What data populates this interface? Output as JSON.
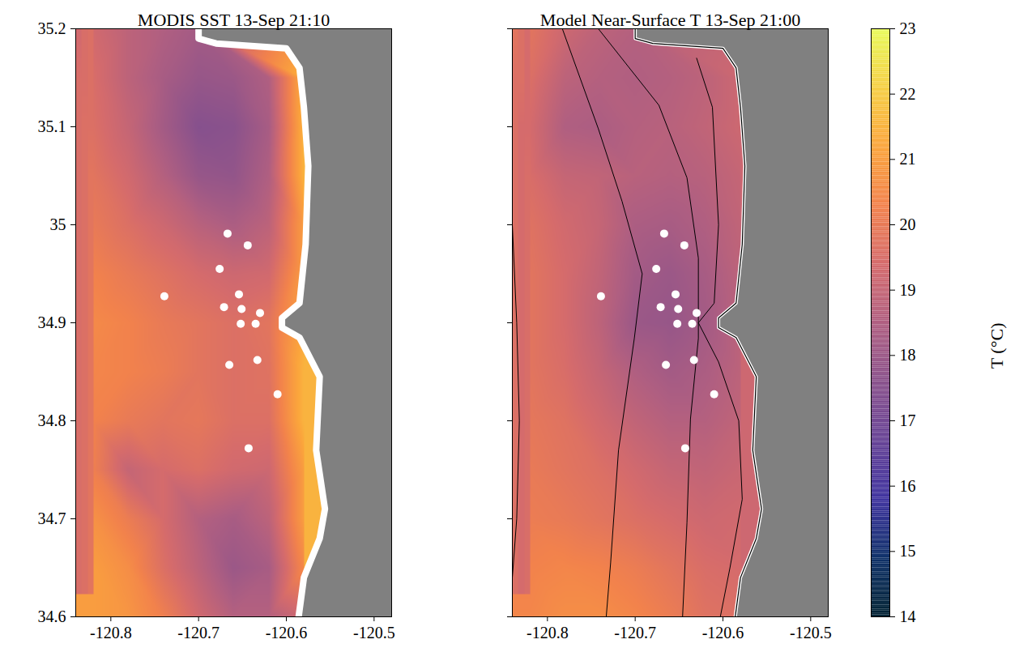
{
  "chart_data": [
    {
      "type": "heatmap",
      "title": "MODIS SST 13-Sep 21:10",
      "xlim": [
        -120.84,
        -120.48
      ],
      "xticks": [
        -120.8,
        -120.7,
        -120.6,
        -120.5
      ],
      "ylim": [
        34.6,
        35.2
      ],
      "yticks": [
        34.6,
        34.7,
        34.8,
        34.9,
        35,
        35.1,
        35.2
      ],
      "lon": [
        -120.82,
        -120.78,
        -120.74,
        -120.7,
        -120.66,
        -120.62,
        -120.58
      ],
      "lat": [
        35.2,
        35.15,
        35.1,
        35.05,
        35.0,
        34.95,
        34.9,
        34.85,
        34.8,
        34.75,
        34.7,
        34.65,
        34.6
      ],
      "cells": [
        [
          19.3,
          18.8,
          18.5,
          18.2,
          null,
          null,
          null
        ],
        [
          19.5,
          18.8,
          18.3,
          17.9,
          18.0,
          18.5,
          21.5
        ],
        [
          19.6,
          19.0,
          18.2,
          17.5,
          17.6,
          18.3,
          21.5
        ],
        [
          19.8,
          19.3,
          18.6,
          17.9,
          17.8,
          18.5,
          21.5
        ],
        [
          20.0,
          19.6,
          19.2,
          18.7,
          18.4,
          18.8,
          21.0
        ],
        [
          20.3,
          20.0,
          19.7,
          19.4,
          19.2,
          19.3,
          21.0
        ],
        [
          20.5,
          20.3,
          20.0,
          19.8,
          19.6,
          19.8,
          null
        ],
        [
          20.4,
          20.3,
          20.1,
          19.8,
          19.6,
          19.7,
          21.5
        ],
        [
          20.3,
          20.0,
          19.8,
          19.9,
          19.6,
          19.6,
          21.5
        ],
        [
          20.2,
          19.0,
          19.4,
          19.6,
          19.3,
          19.2,
          21.0
        ],
        [
          20.7,
          20.1,
          19.4,
          18.6,
          18.3,
          18.8,
          21.0
        ],
        [
          21.0,
          20.6,
          19.6,
          18.8,
          18.0,
          18.3,
          20.5
        ],
        [
          21.0,
          20.8,
          20.2,
          19.3,
          18.6,
          18.6,
          null
        ]
      ],
      "coastline": [
        [
          -120.7,
          35.2
        ],
        [
          -120.7,
          35.19
        ],
        [
          -120.68,
          35.185
        ],
        [
          -120.6,
          35.18
        ],
        [
          -120.585,
          35.16
        ],
        [
          -120.58,
          35.12
        ],
        [
          -120.575,
          35.06
        ],
        [
          -120.578,
          34.98
        ],
        [
          -120.585,
          34.92
        ],
        [
          -120.605,
          34.905
        ],
        [
          -120.605,
          34.895
        ],
        [
          -120.585,
          34.885
        ],
        [
          -120.562,
          34.845
        ],
        [
          -120.566,
          34.77
        ],
        [
          -120.556,
          34.71
        ],
        [
          -120.562,
          34.68
        ],
        [
          -120.58,
          34.64
        ],
        [
          -120.586,
          34.6
        ]
      ],
      "stations": {
        "lon": [
          -120.667,
          -120.644,
          -120.676,
          -120.739,
          -120.654,
          -120.671,
          -120.651,
          -120.63,
          -120.652,
          -120.635,
          -120.665,
          -120.633,
          -120.61,
          -120.643
        ],
        "lat": [
          34.991,
          34.979,
          34.955,
          34.927,
          34.929,
          34.916,
          34.914,
          34.91,
          34.899,
          34.899,
          34.857,
          34.862,
          34.827,
          34.772
        ]
      }
    },
    {
      "type": "heatmap",
      "title": "Model Near-Surface T 13-Sep 21:00",
      "xlim": [
        -120.84,
        -120.48
      ],
      "xticks": [
        -120.8,
        -120.7,
        -120.6,
        -120.5
      ],
      "ylim": [
        34.6,
        35.2
      ],
      "yticks": [
        34.6,
        34.7,
        34.8,
        34.9,
        35,
        35.1,
        35.2
      ],
      "tick_labels": "x",
      "lon": [
        -120.82,
        -120.78,
        -120.74,
        -120.7,
        -120.66,
        -120.62,
        -120.58
      ],
      "lat": [
        35.2,
        35.15,
        35.1,
        35.05,
        35.0,
        34.95,
        34.9,
        34.85,
        34.8,
        34.75,
        34.7,
        34.65,
        34.6
      ],
      "cells": [
        [
          19.8,
          19.2,
          18.8,
          18.6,
          null,
          null,
          null
        ],
        [
          19.6,
          18.8,
          18.6,
          18.5,
          18.6,
          18.8,
          19.2
        ],
        [
          19.4,
          18.5,
          18.4,
          18.6,
          18.7,
          18.9,
          19.2
        ],
        [
          19.5,
          19.0,
          18.9,
          18.7,
          18.6,
          18.7,
          19.0
        ],
        [
          19.7,
          19.3,
          19.0,
          18.4,
          18.3,
          18.5,
          18.9
        ],
        [
          19.8,
          19.4,
          18.9,
          18.2,
          18.0,
          18.3,
          18.8
        ],
        [
          19.8,
          19.4,
          18.8,
          18.0,
          17.9,
          18.2,
          null
        ],
        [
          19.8,
          19.5,
          19.0,
          18.5,
          18.2,
          18.4,
          18.8
        ],
        [
          19.9,
          19.7,
          19.3,
          18.9,
          18.6,
          18.6,
          18.9
        ],
        [
          20.0,
          19.8,
          19.6,
          19.3,
          19.0,
          18.9,
          19.1
        ],
        [
          20.1,
          20.0,
          19.8,
          19.6,
          19.4,
          19.2,
          19.3
        ],
        [
          20.3,
          20.4,
          20.3,
          20.1,
          19.8,
          19.5,
          19.4
        ],
        [
          20.4,
          20.6,
          20.6,
          20.4,
          20.1,
          19.7,
          null
        ]
      ],
      "coastline": [
        [
          -120.7,
          35.2
        ],
        [
          -120.7,
          35.19
        ],
        [
          -120.68,
          35.185
        ],
        [
          -120.6,
          35.18
        ],
        [
          -120.585,
          35.16
        ],
        [
          -120.58,
          35.12
        ],
        [
          -120.575,
          35.06
        ],
        [
          -120.578,
          34.98
        ],
        [
          -120.585,
          34.92
        ],
        [
          -120.605,
          34.905
        ],
        [
          -120.605,
          34.895
        ],
        [
          -120.585,
          34.885
        ],
        [
          -120.562,
          34.845
        ],
        [
          -120.566,
          34.77
        ],
        [
          -120.556,
          34.71
        ],
        [
          -120.562,
          34.68
        ],
        [
          -120.58,
          34.64
        ],
        [
          -120.586,
          34.6
        ]
      ],
      "contours": [
        [
          [
            -120.84,
            35.0
          ],
          [
            -120.835,
            34.9
          ],
          [
            -120.832,
            34.8
          ],
          [
            -120.835,
            34.7
          ],
          [
            -120.84,
            34.64
          ]
        ],
        [
          [
            -120.783,
            35.2
          ],
          [
            -120.742,
            35.098
          ],
          [
            -120.715,
            35.024
          ],
          [
            -120.692,
            34.95
          ],
          [
            -120.701,
            34.884
          ],
          [
            -120.719,
            34.77
          ],
          [
            -120.728,
            34.655
          ],
          [
            -120.733,
            34.6
          ]
        ],
        [
          [
            -120.742,
            35.2
          ],
          [
            -120.673,
            35.122
          ],
          [
            -120.641,
            35.048
          ],
          [
            -120.628,
            34.966
          ],
          [
            -120.628,
            34.884
          ],
          [
            -120.637,
            34.802
          ],
          [
            -120.641,
            34.696
          ],
          [
            -120.646,
            34.6
          ]
        ],
        [
          [
            -120.63,
            35.17
          ],
          [
            -120.612,
            35.12
          ],
          [
            -120.605,
            35.0
          ],
          [
            -120.61,
            34.92
          ],
          [
            -120.628,
            34.9
          ],
          [
            -120.605,
            34.86
          ],
          [
            -120.582,
            34.8
          ],
          [
            -120.578,
            34.72
          ],
          [
            -120.592,
            34.65
          ],
          [
            -120.603,
            34.6
          ]
        ]
      ],
      "stations": {
        "lon": [
          -120.667,
          -120.644,
          -120.676,
          -120.739,
          -120.654,
          -120.671,
          -120.651,
          -120.63,
          -120.652,
          -120.635,
          -120.665,
          -120.633,
          -120.61,
          -120.643
        ],
        "lat": [
          34.991,
          34.979,
          34.955,
          34.927,
          34.929,
          34.916,
          34.914,
          34.91,
          34.899,
          34.899,
          34.857,
          34.862,
          34.827,
          34.772
        ]
      },
      "colorbar": {
        "lim": [
          14,
          23
        ],
        "ticks": [
          14,
          15,
          16,
          17,
          18,
          19,
          20,
          21,
          22,
          23
        ],
        "label": "T (°C)",
        "colors": [
          "#032333",
          "#0f3169",
          "#3f339f",
          "#674396",
          "#8a528c",
          "#b05f81",
          "#d56b6c",
          "#f2824c",
          "#fba53c",
          "#f6d045",
          "#e8fa5b"
        ]
      }
    }
  ]
}
